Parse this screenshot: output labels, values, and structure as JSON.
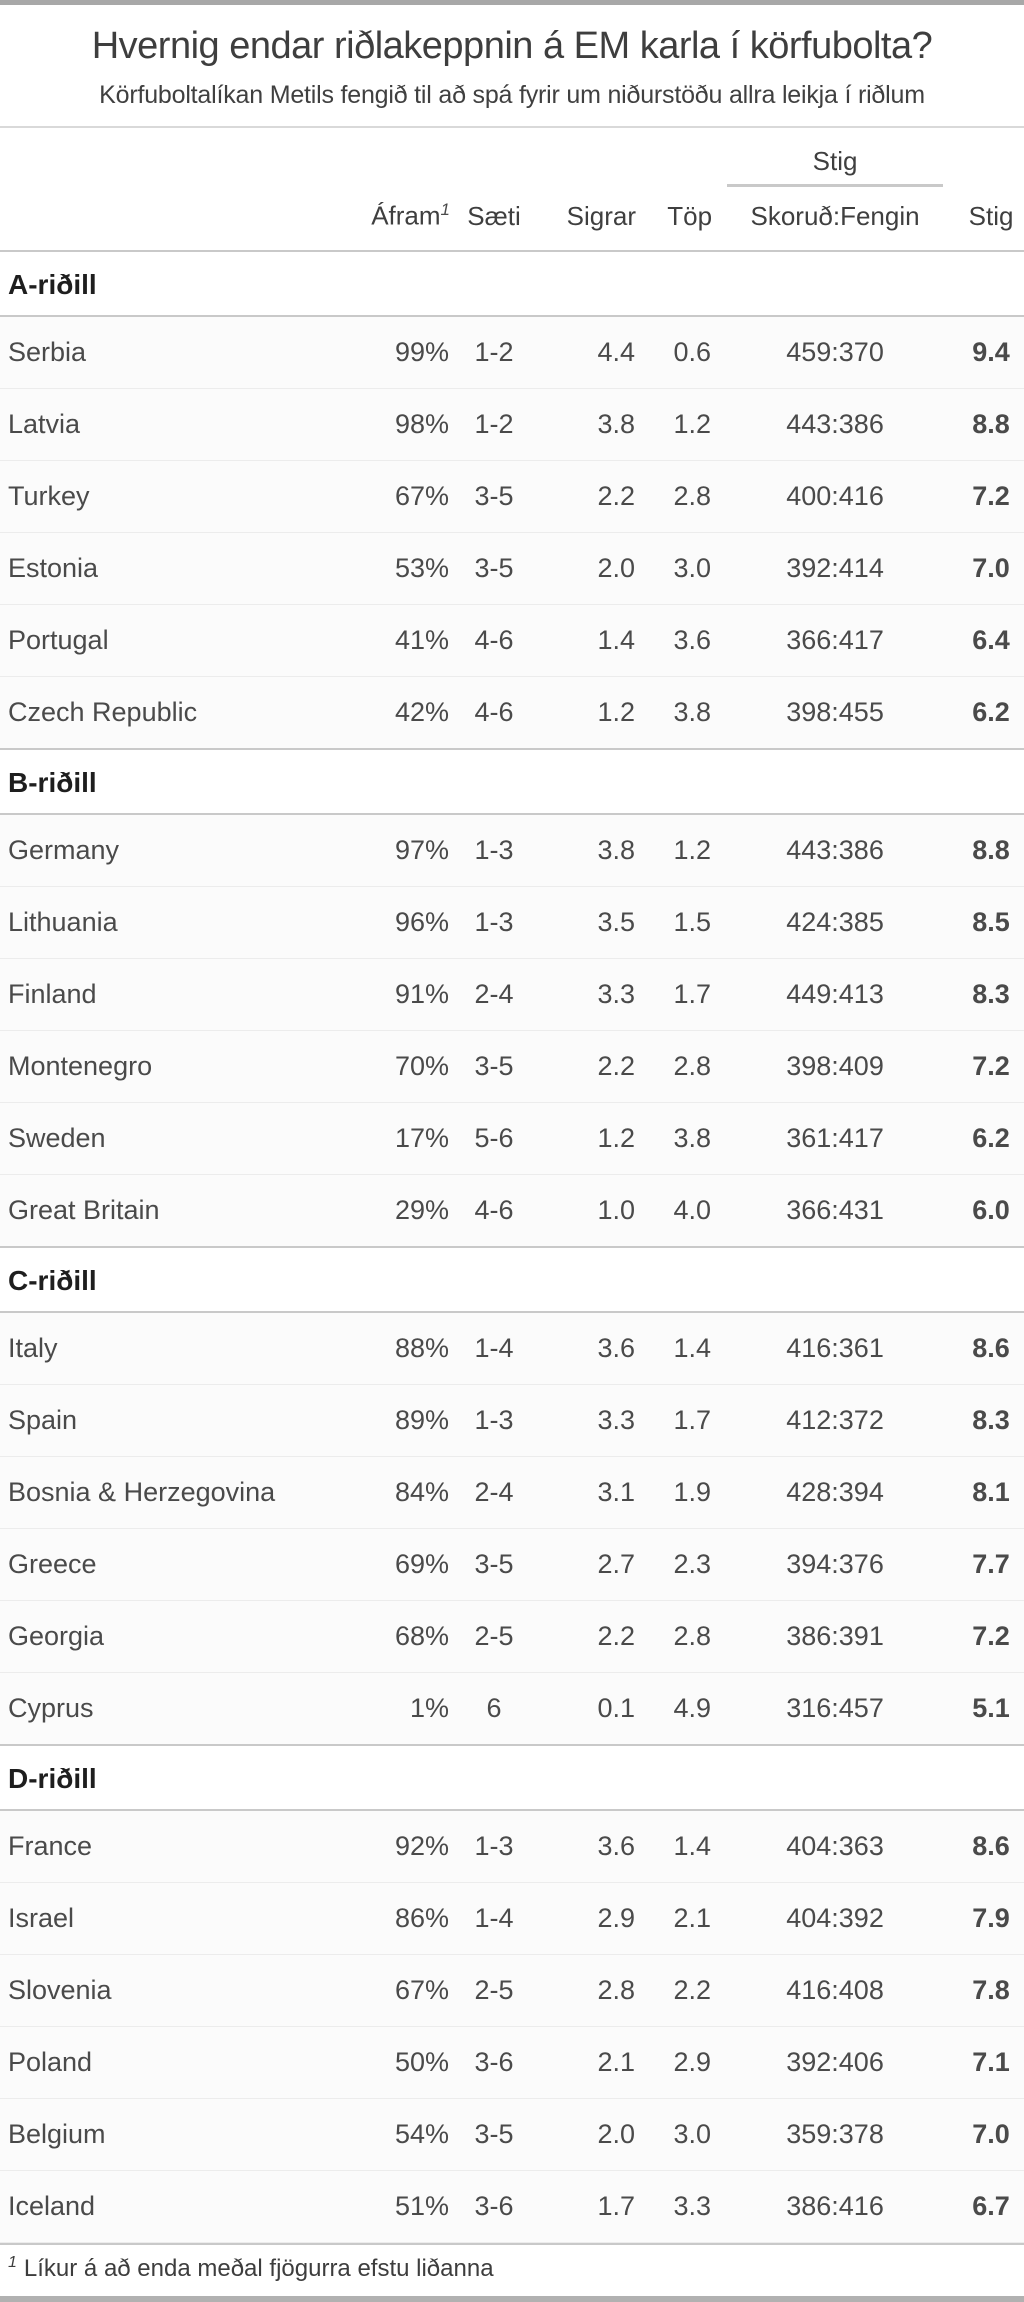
{
  "chart_data": {
    "type": "table",
    "title": "Hvernig endar riðlakeppnin á EM karla í körfubolta?",
    "subtitle": "Körfuboltalíkan Metils fengið til að spá fyrir um niðurstöðu allra leikja í riðlum",
    "column_group": {
      "label": "Stig",
      "over_column": "Skoruð:Fengin"
    },
    "columns": [
      {
        "key": "afram",
        "label": "Áfram",
        "superscript": "1"
      },
      {
        "key": "saeti",
        "label": "Sæti"
      },
      {
        "key": "sigrar",
        "label": "Sigrar"
      },
      {
        "key": "top",
        "label": "Töp"
      },
      {
        "key": "skorud",
        "label": "Skoruð:Fengin"
      },
      {
        "key": "stig",
        "label": "Stig"
      }
    ],
    "groups": [
      {
        "label": "A-riðill",
        "teams": [
          {
            "name": "Serbia",
            "afram": "99%",
            "saeti": "1-2",
            "sigrar": "4.4",
            "top": "0.6",
            "skorud": "459:370",
            "stig": "9.4"
          },
          {
            "name": "Latvia",
            "afram": "98%",
            "saeti": "1-2",
            "sigrar": "3.8",
            "top": "1.2",
            "skorud": "443:386",
            "stig": "8.8"
          },
          {
            "name": "Turkey",
            "afram": "67%",
            "saeti": "3-5",
            "sigrar": "2.2",
            "top": "2.8",
            "skorud": "400:416",
            "stig": "7.2"
          },
          {
            "name": "Estonia",
            "afram": "53%",
            "saeti": "3-5",
            "sigrar": "2.0",
            "top": "3.0",
            "skorud": "392:414",
            "stig": "7.0"
          },
          {
            "name": "Portugal",
            "afram": "41%",
            "saeti": "4-6",
            "sigrar": "1.4",
            "top": "3.6",
            "skorud": "366:417",
            "stig": "6.4"
          },
          {
            "name": "Czech Republic",
            "afram": "42%",
            "saeti": "4-6",
            "sigrar": "1.2",
            "top": "3.8",
            "skorud": "398:455",
            "stig": "6.2"
          }
        ]
      },
      {
        "label": "B-riðill",
        "teams": [
          {
            "name": "Germany",
            "afram": "97%",
            "saeti": "1-3",
            "sigrar": "3.8",
            "top": "1.2",
            "skorud": "443:386",
            "stig": "8.8"
          },
          {
            "name": "Lithuania",
            "afram": "96%",
            "saeti": "1-3",
            "sigrar": "3.5",
            "top": "1.5",
            "skorud": "424:385",
            "stig": "8.5"
          },
          {
            "name": "Finland",
            "afram": "91%",
            "saeti": "2-4",
            "sigrar": "3.3",
            "top": "1.7",
            "skorud": "449:413",
            "stig": "8.3"
          },
          {
            "name": "Montenegro",
            "afram": "70%",
            "saeti": "3-5",
            "sigrar": "2.2",
            "top": "2.8",
            "skorud": "398:409",
            "stig": "7.2"
          },
          {
            "name": "Sweden",
            "afram": "17%",
            "saeti": "5-6",
            "sigrar": "1.2",
            "top": "3.8",
            "skorud": "361:417",
            "stig": "6.2"
          },
          {
            "name": "Great Britain",
            "afram": "29%",
            "saeti": "4-6",
            "sigrar": "1.0",
            "top": "4.0",
            "skorud": "366:431",
            "stig": "6.0"
          }
        ]
      },
      {
        "label": "C-riðill",
        "teams": [
          {
            "name": "Italy",
            "afram": "88%",
            "saeti": "1-4",
            "sigrar": "3.6",
            "top": "1.4",
            "skorud": "416:361",
            "stig": "8.6"
          },
          {
            "name": "Spain",
            "afram": "89%",
            "saeti": "1-3",
            "sigrar": "3.3",
            "top": "1.7",
            "skorud": "412:372",
            "stig": "8.3"
          },
          {
            "name": "Bosnia & Herzegovina",
            "afram": "84%",
            "saeti": "2-4",
            "sigrar": "3.1",
            "top": "1.9",
            "skorud": "428:394",
            "stig": "8.1"
          },
          {
            "name": "Greece",
            "afram": "69%",
            "saeti": "3-5",
            "sigrar": "2.7",
            "top": "2.3",
            "skorud": "394:376",
            "stig": "7.7"
          },
          {
            "name": "Georgia",
            "afram": "68%",
            "saeti": "2-5",
            "sigrar": "2.2",
            "top": "2.8",
            "skorud": "386:391",
            "stig": "7.2"
          },
          {
            "name": "Cyprus",
            "afram": "1%",
            "saeti": "6",
            "sigrar": "0.1",
            "top": "4.9",
            "skorud": "316:457",
            "stig": "5.1"
          }
        ]
      },
      {
        "label": "D-riðill",
        "teams": [
          {
            "name": "France",
            "afram": "92%",
            "saeti": "1-3",
            "sigrar": "3.6",
            "top": "1.4",
            "skorud": "404:363",
            "stig": "8.6"
          },
          {
            "name": "Israel",
            "afram": "86%",
            "saeti": "1-4",
            "sigrar": "2.9",
            "top": "2.1",
            "skorud": "404:392",
            "stig": "7.9"
          },
          {
            "name": "Slovenia",
            "afram": "67%",
            "saeti": "2-5",
            "sigrar": "2.8",
            "top": "2.2",
            "skorud": "416:408",
            "stig": "7.8"
          },
          {
            "name": "Poland",
            "afram": "50%",
            "saeti": "3-6",
            "sigrar": "2.1",
            "top": "2.9",
            "skorud": "392:406",
            "stig": "7.1"
          },
          {
            "name": "Belgium",
            "afram": "54%",
            "saeti": "3-5",
            "sigrar": "2.0",
            "top": "3.0",
            "skorud": "359:378",
            "stig": "7.0"
          },
          {
            "name": "Iceland",
            "afram": "51%",
            "saeti": "3-6",
            "sigrar": "1.7",
            "top": "3.3",
            "skorud": "386:416",
            "stig": "6.7"
          }
        ]
      }
    ],
    "footnote": {
      "marker": "1",
      "text": "Líkur á að enda meðal fjögurra efstu liðanna"
    },
    "colors": {
      "wins": "#0e5327",
      "losses": "#7e1220"
    },
    "layout_hints": {
      "grid": "horizontal-rules",
      "legend": "none",
      "value_alignment": "right/center"
    }
  }
}
